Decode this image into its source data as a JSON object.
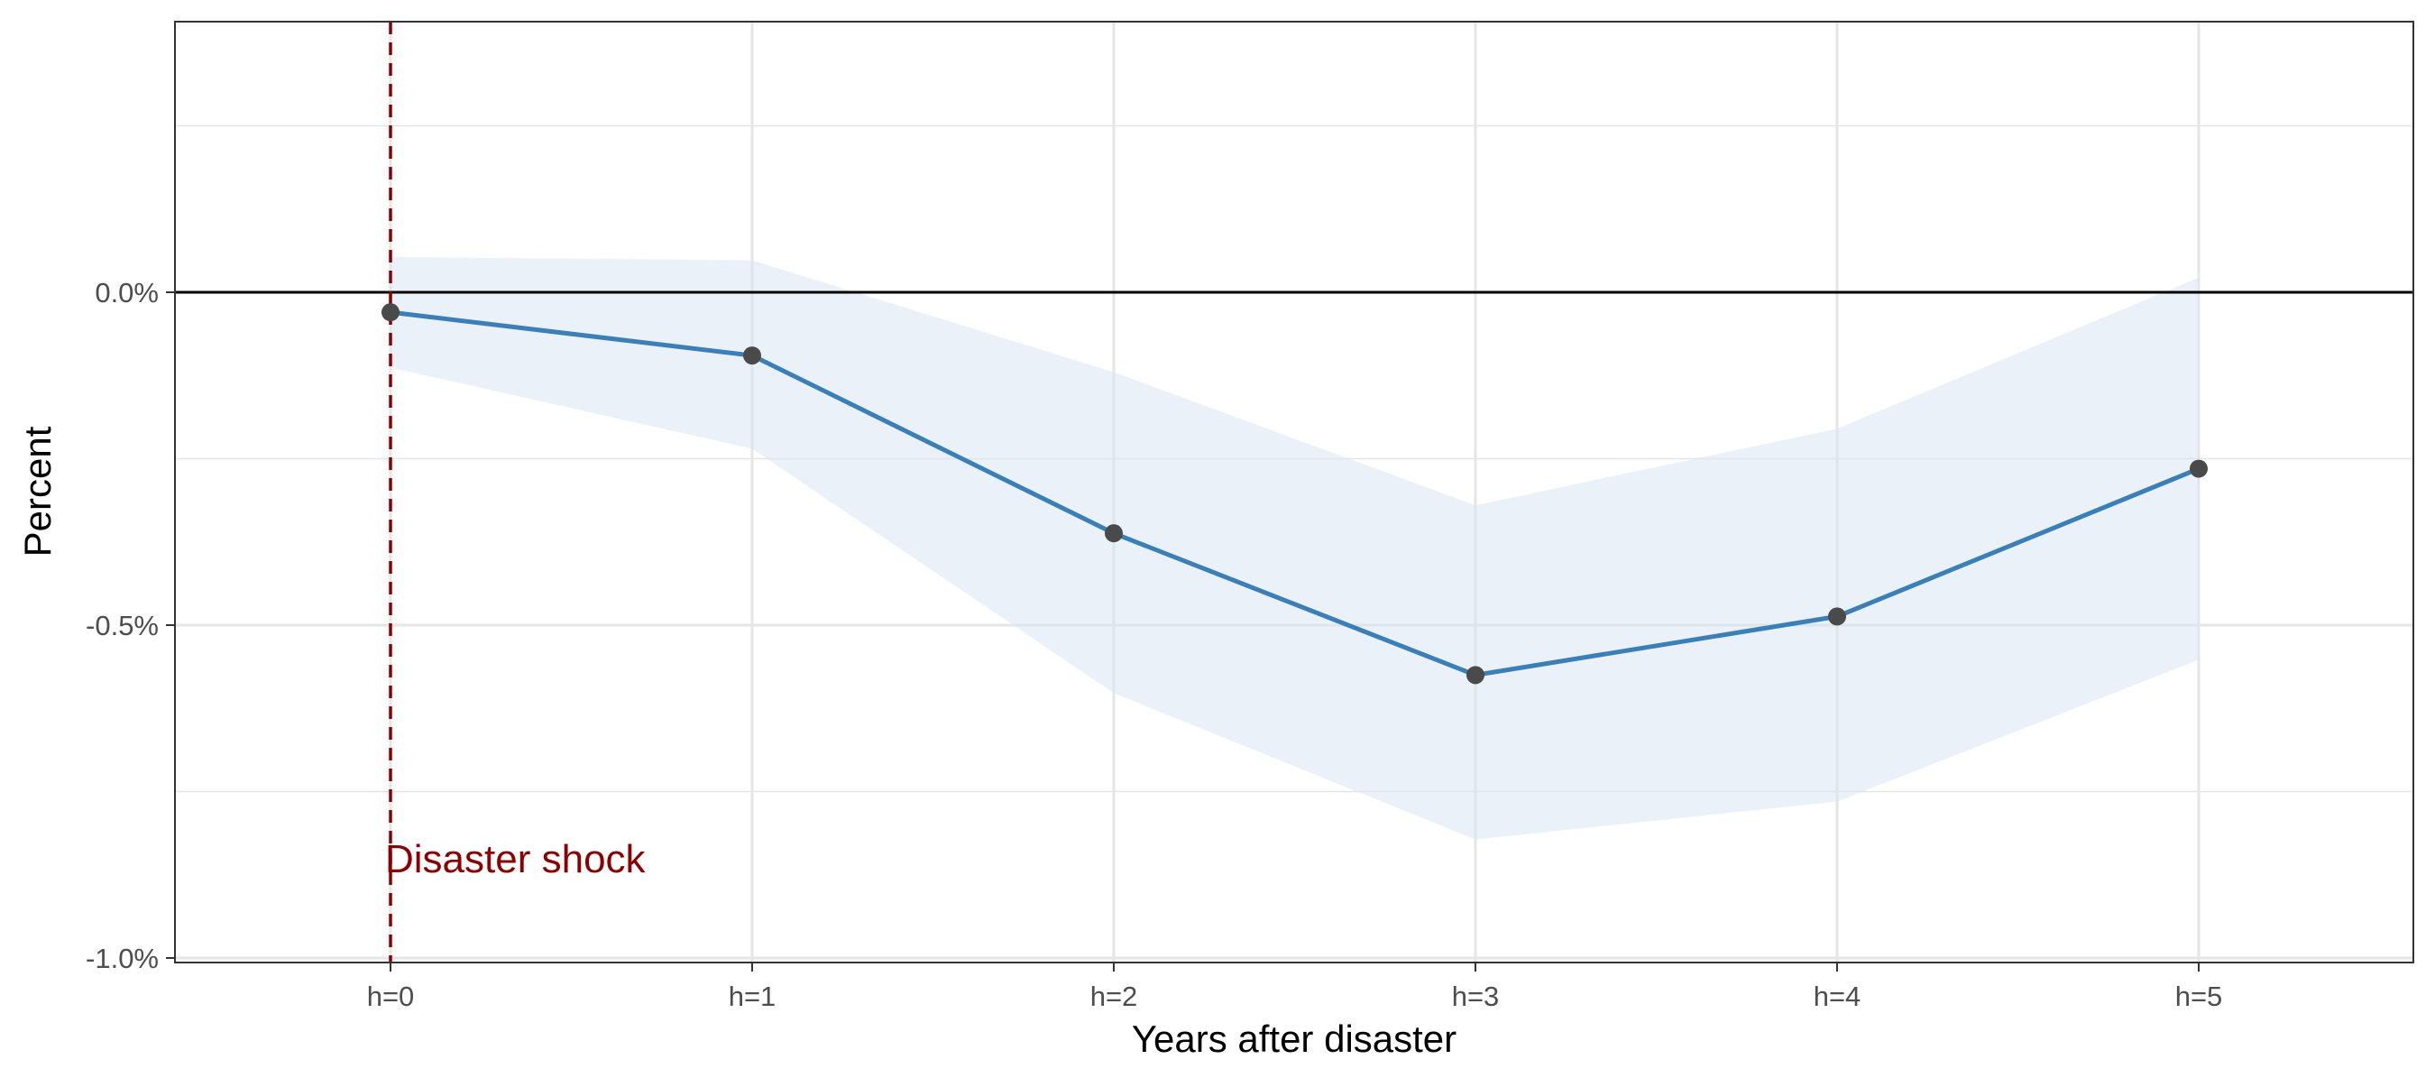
{
  "chart_data": {
    "type": "line",
    "title": "",
    "xlabel": "Years after disaster",
    "ylabel": "Percent",
    "categories": [
      "h=0",
      "h=1",
      "h=2",
      "h=3",
      "h=4",
      "h=5"
    ],
    "series": [
      {
        "values": [
          -0.03,
          -0.095,
          -0.362,
          -0.575,
          -0.487,
          -0.265
        ],
        "ci_upper": [
          0.053,
          0.048,
          -0.12,
          -0.32,
          -0.205,
          0.022
        ],
        "ci_lower": [
          -0.113,
          -0.235,
          -0.602,
          -0.822,
          -0.765,
          -0.552
        ]
      }
    ],
    "ylim": [
      -1.0,
      0.4
    ],
    "yticks": [
      0.0,
      -0.5,
      -1.0
    ],
    "ytick_labels": [
      "0.0%",
      "-0.5%",
      "-1.0%"
    ],
    "reference_line": 0.0,
    "event_marker": {
      "category": "h=0",
      "label": "Disaster shock"
    },
    "grid": true,
    "legend": "none"
  },
  "colors": {
    "line": "#3a7fb8",
    "point": "#4a4a4a",
    "ribbon": "#d8e6f3",
    "event": "#8b0000",
    "gridline": "#e5e5e5",
    "zero_line": "#000000",
    "panel_border": "#333333"
  }
}
